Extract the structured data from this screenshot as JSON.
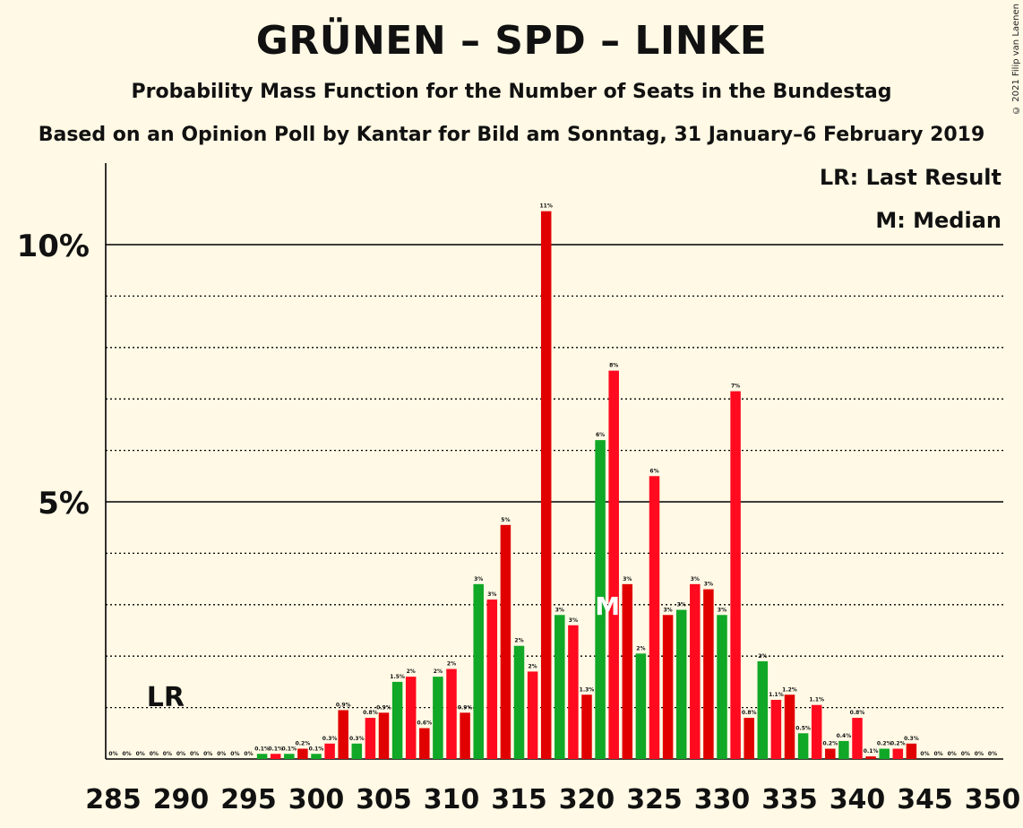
{
  "chart_data": {
    "type": "bar",
    "title": "GRÜNEN – SPD – LINKE",
    "subtitle": "Probability Mass Function for the Number of Seats in the Bundestag",
    "subtitle2": "Based on an Opinion Poll by Kantar for Bild am Sonntag, 31 January–6 February 2019",
    "copyright": "© 2021 Filip van Laenen",
    "legend": {
      "last_result": "LR: Last Result",
      "median": "M: Median"
    },
    "lr_label": "LR",
    "lr_seat": 289,
    "median_label": "M",
    "median_seat": 322,
    "ylim": [
      0,
      11.6
    ],
    "yticks": [
      {
        "value": 5,
        "label": "5%"
      },
      {
        "value": 10,
        "label": "10%"
      }
    ],
    "xticks": [
      285,
      290,
      295,
      300,
      305,
      310,
      315,
      320,
      325,
      330,
      335,
      340,
      345,
      350
    ],
    "colors": {
      "green": "#10A826",
      "red": "#E10000",
      "bright_red": "#FF0A1E"
    },
    "seats": [
      285,
      286,
      287,
      288,
      289,
      290,
      291,
      292,
      293,
      294,
      295,
      296,
      297,
      298,
      299,
      300,
      301,
      302,
      303,
      304,
      305,
      306,
      307,
      308,
      309,
      310,
      311,
      312,
      313,
      314,
      315,
      316,
      317,
      318,
      319,
      320,
      321,
      322,
      323,
      324,
      325,
      326,
      327,
      328,
      329,
      330,
      331,
      332,
      333,
      334,
      335,
      336,
      337,
      338,
      339,
      340,
      341,
      342,
      343,
      344,
      345,
      346,
      347,
      348,
      349,
      350
    ],
    "values": [
      0,
      0,
      0,
      0,
      0,
      0,
      0,
      0,
      0,
      0,
      0,
      0.1,
      0.1,
      0.1,
      0.2,
      0.1,
      0.3,
      0.95,
      0.3,
      0.8,
      0.9,
      1.5,
      1.6,
      0.6,
      1.6,
      1.75,
      0.9,
      3.4,
      3.1,
      4.55,
      2.2,
      1.7,
      10.65,
      2.8,
      2.6,
      1.25,
      6.2,
      7.55,
      3.4,
      2.05,
      5.5,
      2.8,
      2.9,
      3.4,
      3.3,
      2.8,
      7.15,
      0.8,
      1.9,
      1.15,
      1.25,
      0.5,
      1.05,
      0.2,
      0.35,
      0.8,
      0.05,
      0.2,
      0.2,
      0.3,
      0,
      0,
      0,
      0,
      0,
      0
    ],
    "labels": [
      "0%",
      "0%",
      "0%",
      "0%",
      "0%",
      "0%",
      "0%",
      "0%",
      "0%",
      "0%",
      "0%",
      "0.1%",
      "0.1%",
      "0.1%",
      "0.2%",
      "0.1%",
      "0.3%",
      "0.9%",
      "0.3%",
      "0.8%",
      "0.9%",
      "1.5%",
      "2%",
      "0.6%",
      "2%",
      "2%",
      "0.9%",
      "3%",
      "3%",
      "5%",
      "2%",
      "2%",
      "11%",
      "3%",
      "3%",
      "1.3%",
      "6%",
      "8%",
      "3%",
      "2%",
      "6%",
      "3%",
      "3%",
      "3%",
      "3%",
      "3%",
      "7%",
      "0.8%",
      "2%",
      "1.1%",
      "1.2%",
      "0.5%",
      "1.1%",
      "0.2%",
      "0.4%",
      "0.8%",
      "0.1%",
      "0.2%",
      "0.2%",
      "0.3%",
      "0%",
      "0%",
      "0%",
      "0%",
      "0%",
      "0%"
    ],
    "colors_per_bar": [
      "g",
      "r",
      "r",
      "g",
      "g",
      "r",
      "r",
      "g",
      "g",
      "r",
      "r",
      "g",
      "r",
      "g",
      "r",
      "g",
      "r",
      "r",
      "g",
      "r",
      "r",
      "g",
      "r",
      "r",
      "g",
      "r",
      "r",
      "g",
      "r",
      "r",
      "g",
      "r",
      "r",
      "g",
      "r",
      "r",
      "g",
      "r",
      "r",
      "g",
      "r",
      "r",
      "g",
      "r",
      "r",
      "g",
      "r",
      "r",
      "g",
      "r",
      "r",
      "g",
      "r",
      "r",
      "g",
      "r",
      "r",
      "g",
      "r",
      "r",
      "g",
      "r",
      "r",
      "g",
      "r",
      "r"
    ]
  }
}
